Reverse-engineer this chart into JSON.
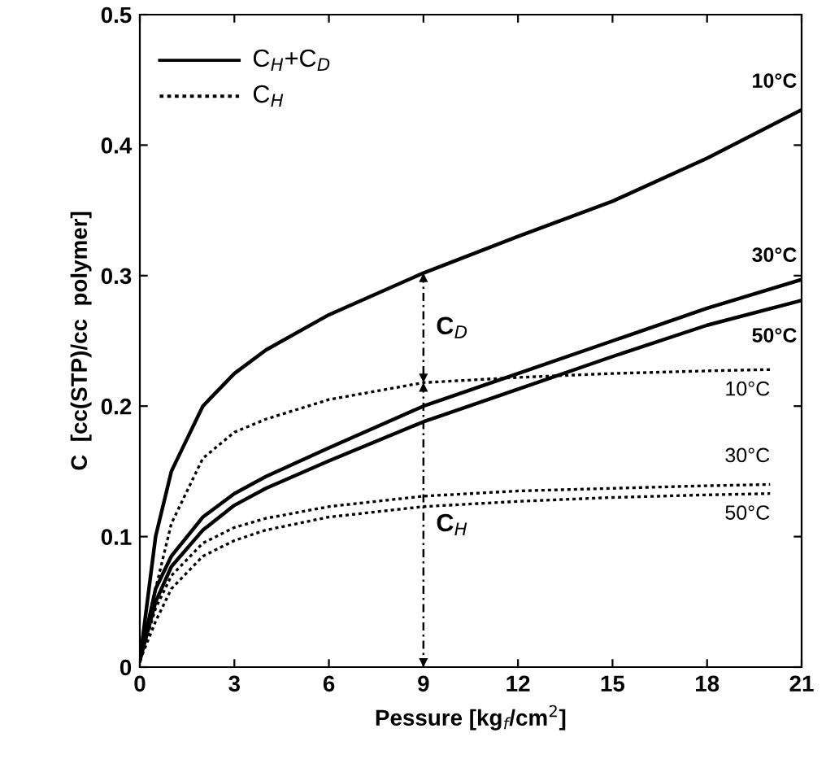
{
  "chart_data": {
    "type": "line",
    "xlabel": "Pessure [kg$_{f}$/cm$^{2}$]",
    "ylabel": "C  [cc(STP)/cc  polymer]",
    "xlim": [
      0,
      21
    ],
    "ylim": [
      0,
      0.5
    ],
    "xticks": [
      0,
      3,
      6,
      9,
      12,
      15,
      18,
      21
    ],
    "yticks": [
      0,
      0.1,
      0.2,
      0.3,
      0.4,
      0.5
    ],
    "grid": false,
    "marker": "none",
    "series": [
      {
        "name": "10°C",
        "color": "#000000",
        "line_style": "solid",
        "x": [
          0,
          0.5,
          1,
          2,
          3,
          4,
          6,
          9,
          12,
          15,
          18,
          21
        ],
        "values": [
          0.005,
          0.1,
          0.15,
          0.2,
          0.225,
          0.243,
          0.27,
          0.302,
          0.33,
          0.357,
          0.39,
          0.427
        ]
      },
      {
        "name": "30°C",
        "color": "#000000",
        "line_style": "solid",
        "x": [
          0,
          0.5,
          1,
          2,
          3,
          4,
          6,
          9,
          12,
          15,
          18,
          21
        ],
        "values": [
          0.005,
          0.06,
          0.085,
          0.115,
          0.133,
          0.146,
          0.168,
          0.2,
          0.225,
          0.25,
          0.275,
          0.297
        ]
      },
      {
        "name": "50°C",
        "color": "#000000",
        "line_style": "solid",
        "x": [
          0,
          0.5,
          1,
          2,
          3,
          4,
          6,
          9,
          12,
          15,
          18,
          21
        ],
        "values": [
          0.005,
          0.05,
          0.077,
          0.105,
          0.124,
          0.137,
          0.158,
          0.188,
          0.213,
          0.238,
          0.262,
          0.281
        ]
      },
      {
        "name": "10°C",
        "color": "#000000",
        "line_style": "dotted",
        "x": [
          0,
          0.5,
          1,
          2,
          3,
          4,
          6,
          9,
          12,
          15,
          18,
          20
        ],
        "values": [
          0.005,
          0.06,
          0.11,
          0.16,
          0.18,
          0.19,
          0.205,
          0.218,
          0.222,
          0.225,
          0.227,
          0.228
        ]
      },
      {
        "name": "30°C",
        "color": "#000000",
        "line_style": "dotted",
        "x": [
          0,
          0.5,
          1,
          2,
          3,
          4,
          6,
          9,
          12,
          15,
          18,
          20
        ],
        "values": [
          0.005,
          0.045,
          0.07,
          0.095,
          0.107,
          0.114,
          0.123,
          0.131,
          0.135,
          0.137,
          0.139,
          0.14
        ]
      },
      {
        "name": "50°C",
        "color": "#000000",
        "line_style": "dotted",
        "x": [
          0,
          0.5,
          1,
          2,
          3,
          4,
          6,
          9,
          12,
          15,
          18,
          20
        ],
        "values": [
          0.005,
          0.035,
          0.06,
          0.085,
          0.097,
          0.105,
          0.115,
          0.123,
          0.127,
          0.13,
          0.132,
          0.133
        ]
      }
    ],
    "ref_lines": [
      {
        "axis": "x",
        "value": 9,
        "line_style": "dotted",
        "color": "#000000"
      }
    ],
    "annotations": [
      "C$_{H}$+C$_{D}$",
      "C$_{H}$",
      "C$_{D}$",
      "C$_{H}$"
    ]
  }
}
